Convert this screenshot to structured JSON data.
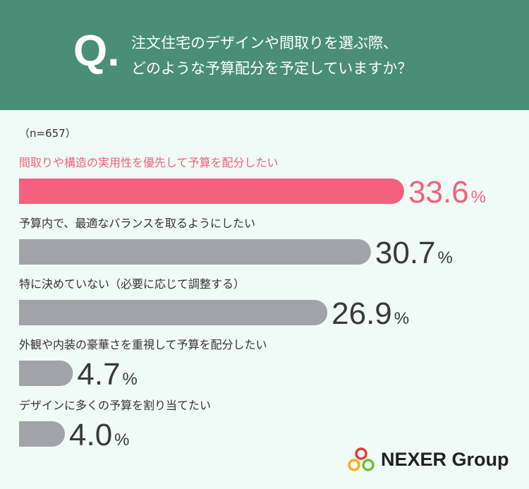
{
  "header": {
    "q_mark": "Q.",
    "question_line1": "注文住宅のデザインや間取りを選ぶ際、",
    "question_line2": "どのような予算配分を予定していますか？"
  },
  "sample_size": "（n=657）",
  "chart_data": {
    "type": "bar",
    "orientation": "horizontal",
    "categories": [
      "間取りや構造の実用性を優先して予算を配分したい",
      "予算内で、最適なバランスを取るようにしたい",
      "特に決めていない（必要に応じて調整する）",
      "外観や内装の豪華さを重視して予算を配分したい",
      "デザインに多くの予算を割り当てたい"
    ],
    "values": [
      33.6,
      30.7,
      26.9,
      4.7,
      4.0
    ],
    "value_labels": [
      "33.6",
      "30.7",
      "26.9",
      "4.7",
      "4.0"
    ],
    "unit": "%",
    "xlim": [
      0,
      33.6
    ],
    "highlight_index": 0,
    "colors": {
      "highlight": "#f4607d",
      "default": "#a2a3a8",
      "highlight_label": "#f4607d",
      "default_label": "#333333",
      "default_value": "#3a3a3a"
    }
  },
  "logo": {
    "text": "NEXER Group",
    "colors": [
      "#e53a3a",
      "#f2b21a",
      "#6cbf3c"
    ]
  }
}
